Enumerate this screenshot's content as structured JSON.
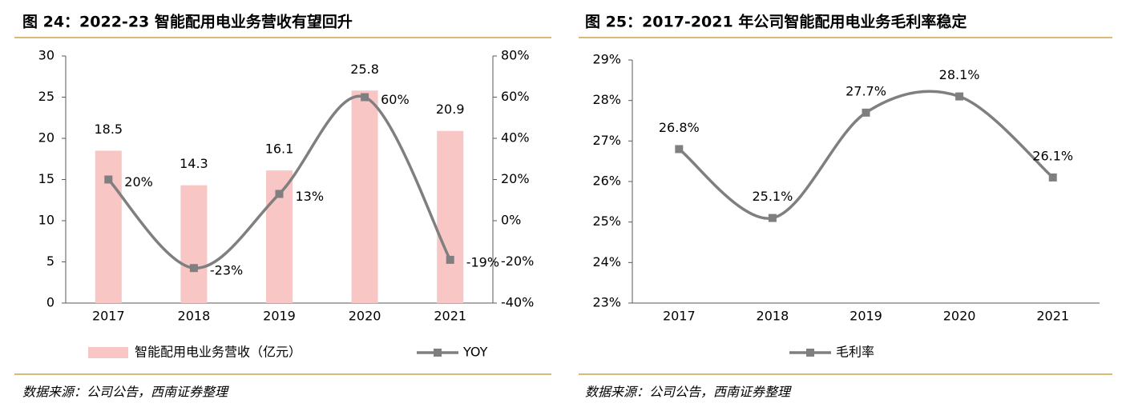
{
  "chart_data": [
    {
      "type": "combo",
      "title": "图 24：2022-23 智能配用电业务营收有望回升",
      "source": "数据来源：公司公告，西南证券整理",
      "categories": [
        "2017",
        "2018",
        "2019",
        "2020",
        "2021"
      ],
      "series": [
        {
          "name": "智能配用电业务营收（亿元）",
          "type": "bar",
          "color": "#f9c6c6",
          "values": [
            18.5,
            14.3,
            16.1,
            25.8,
            20.9
          ]
        },
        {
          "name": "YOY",
          "type": "line",
          "axis": "y2",
          "color": "#7f7f7f",
          "values": [
            20,
            -23,
            13,
            60,
            -19
          ],
          "value_labels": [
            "20%",
            "-23%",
            "13%",
            "60%",
            "-19%"
          ]
        }
      ],
      "ylim": [
        0,
        30
      ],
      "yticks": [
        0,
        5,
        10,
        15,
        20,
        25,
        30
      ],
      "y2lim": [
        -40,
        80
      ],
      "y2ticks": [
        {
          "value": -40,
          "label": "-40%"
        },
        {
          "value": -20,
          "label": "-20%"
        },
        {
          "value": 0,
          "label": "0%"
        },
        {
          "value": 20,
          "label": "20%"
        },
        {
          "value": 40,
          "label": "40%"
        },
        {
          "value": 60,
          "label": "60%"
        },
        {
          "value": 80,
          "label": "80%"
        }
      ]
    },
    {
      "type": "line",
      "title": "图 25：2017-2021 年公司智能配用电业务毛利率稳定",
      "source": "数据来源：公司公告，西南证券整理",
      "categories": [
        "2017",
        "2018",
        "2019",
        "2020",
        "2021"
      ],
      "series": [
        {
          "name": "毛利率",
          "type": "line",
          "color": "#7f7f7f",
          "values": [
            26.8,
            25.1,
            27.7,
            28.1,
            26.1
          ],
          "value_labels": [
            "26.8%",
            "25.1%",
            "27.7%",
            "28.1%",
            "26.1%"
          ]
        }
      ],
      "ylim": [
        23,
        29
      ],
      "yticks": [
        {
          "value": 23,
          "label": "23%"
        },
        {
          "value": 24,
          "label": "24%"
        },
        {
          "value": 25,
          "label": "25%"
        },
        {
          "value": 26,
          "label": "26%"
        },
        {
          "value": 27,
          "label": "27%"
        },
        {
          "value": 28,
          "label": "28%"
        },
        {
          "value": 29,
          "label": "29%"
        }
      ]
    }
  ]
}
